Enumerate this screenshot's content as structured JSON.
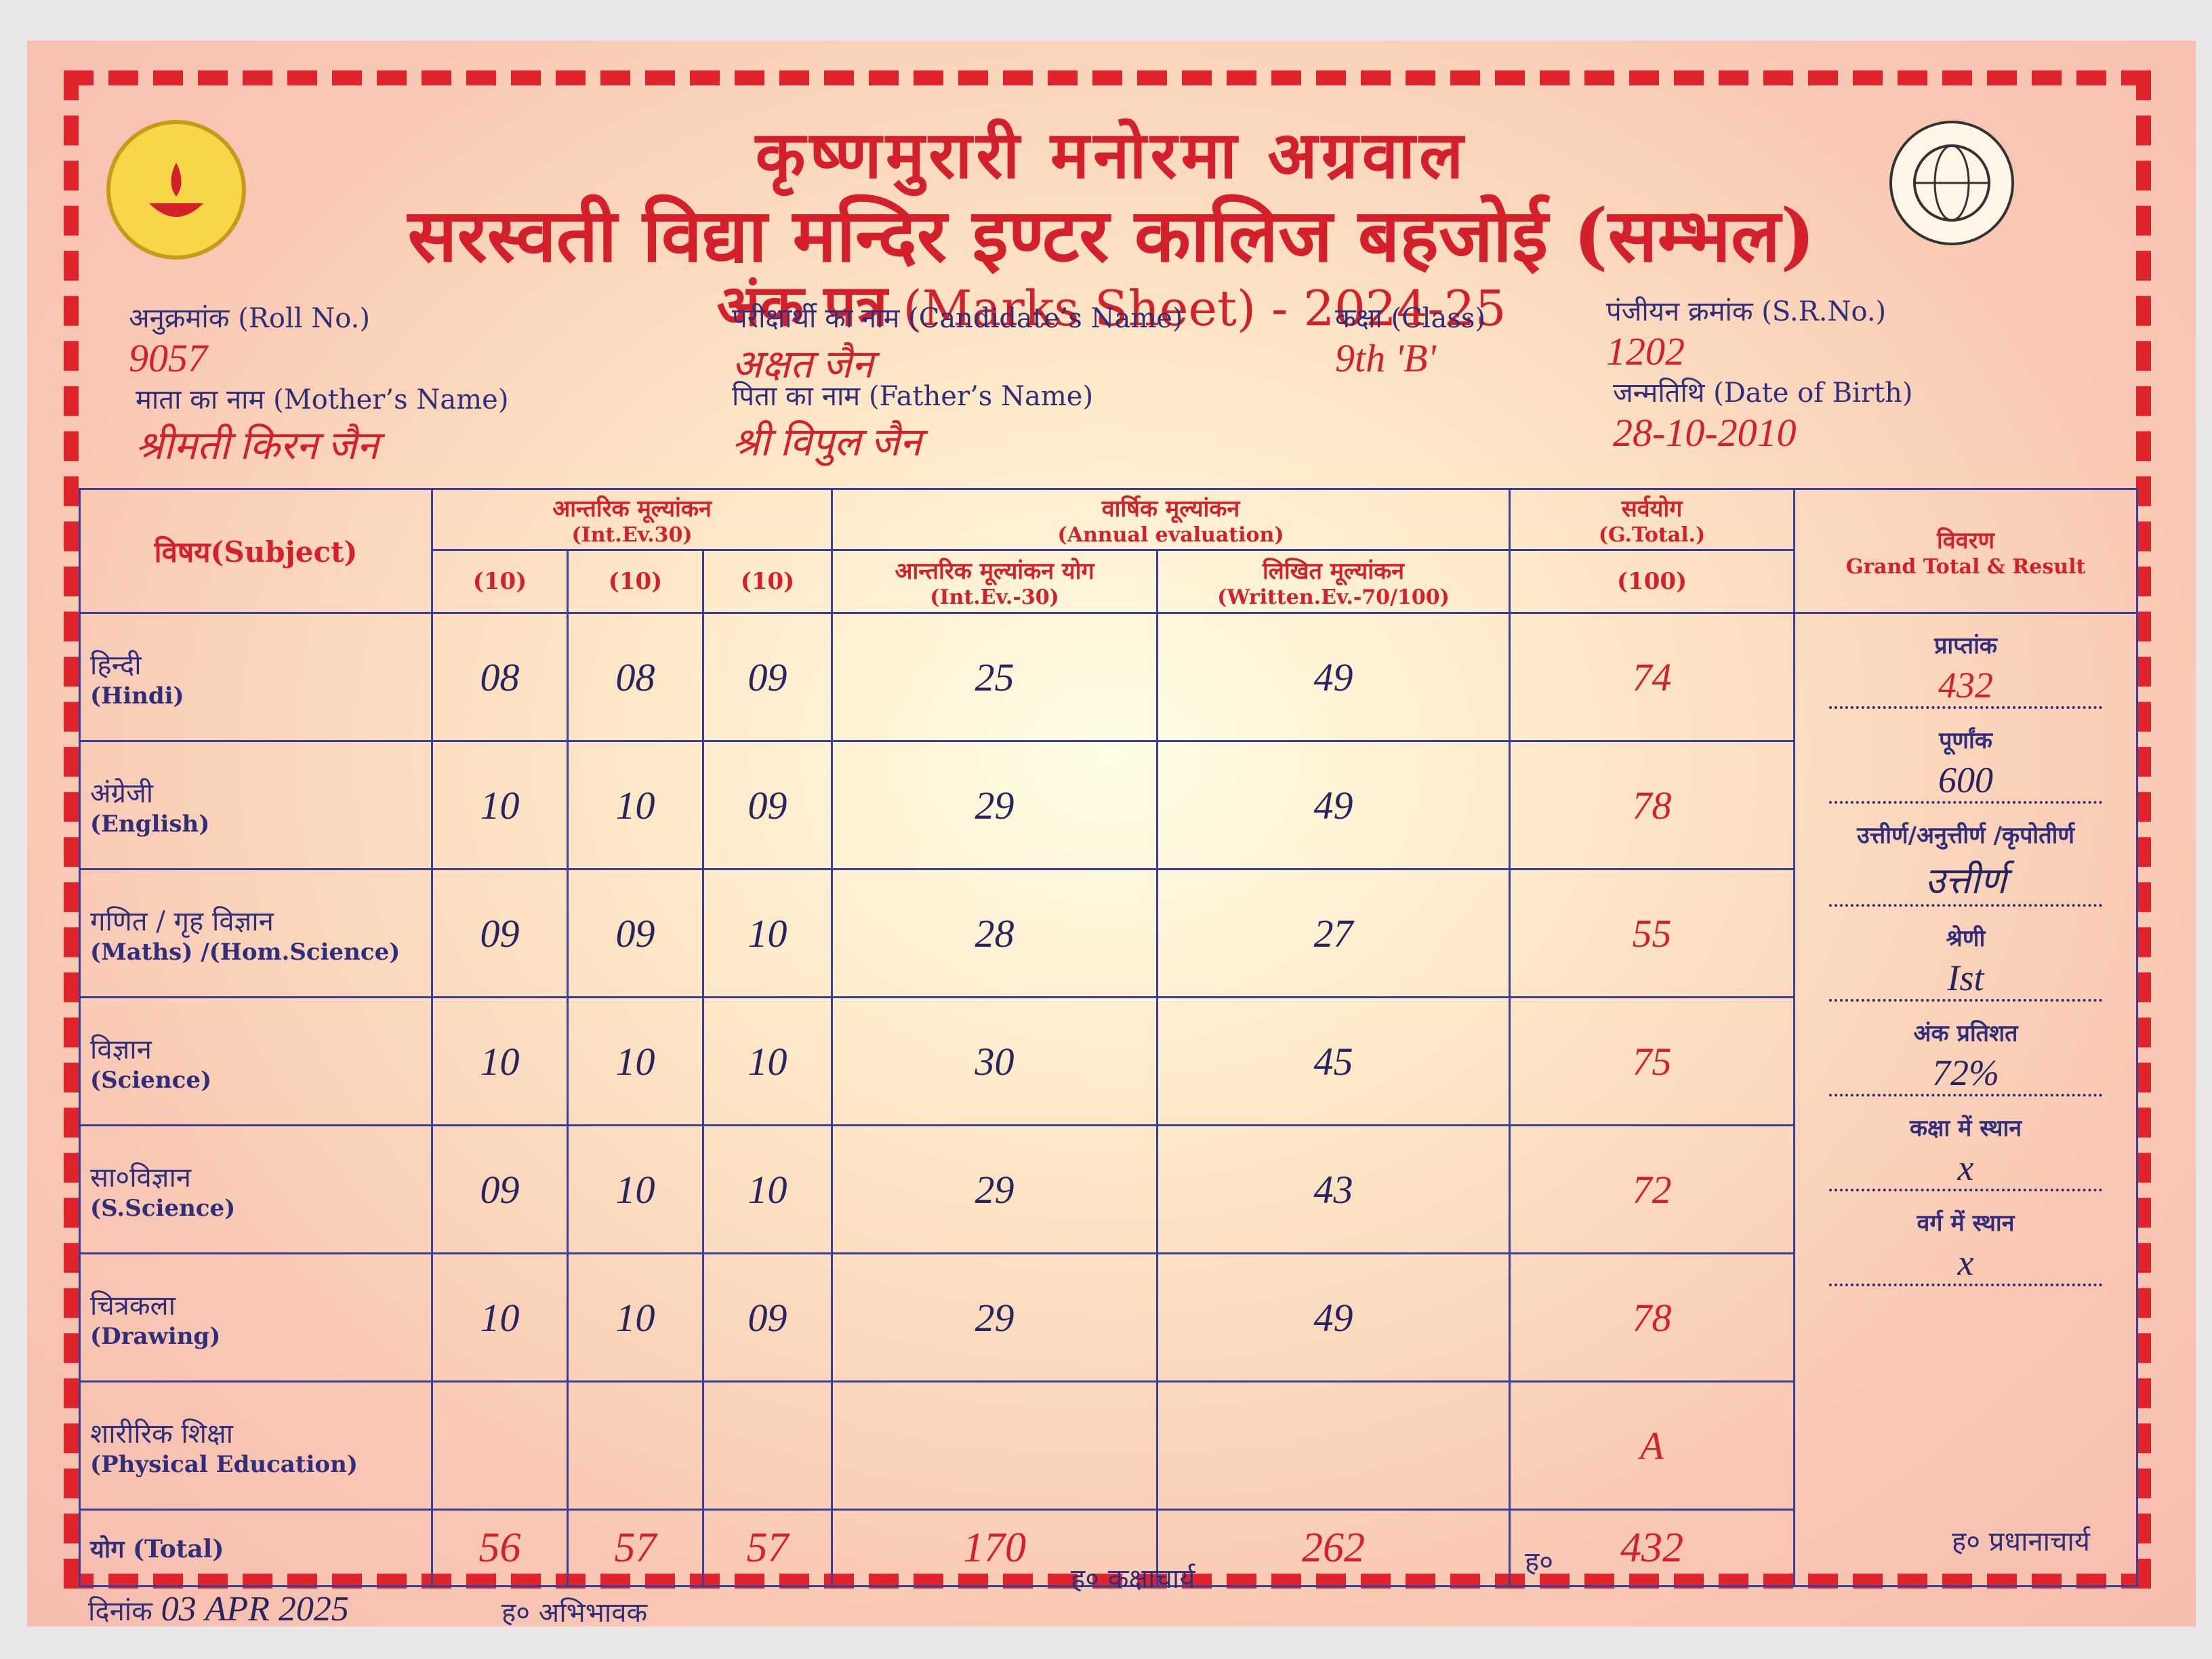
{
  "header": {
    "line1": "कृष्णमुरारी मनोरमा अग्रवाल",
    "line2": "सरस्वती विद्या मन्दिर इण्टर कालिज बहजोई (सम्भल)",
    "title_hi": "अंक पत्र",
    "title_en": "(Marks Sheet) - 2024-25"
  },
  "student": {
    "fields": [
      {
        "label": "अनुक्रमांक (Roll No.)",
        "value": "9057"
      },
      {
        "label": "परीक्षार्थी का नाम (Candidate’s Name)",
        "value": "अक्षत जैन"
      },
      {
        "label": "कक्षा (Class)",
        "value": "9th 'B'"
      },
      {
        "label": "पंजीयन क्रमांक (S.R.No.)",
        "value": "1202"
      },
      {
        "label": "माता का नाम (Mother’s Name)",
        "value": "श्रीमती किरन जैन"
      },
      {
        "label": "पिता का नाम (Father’s Name)",
        "value": "श्री विपुल जैन"
      },
      {
        "label": "जन्मतिथि (Date of Birth)",
        "value": "28-10-2010"
      }
    ]
  },
  "table": {
    "headers": {
      "subject": "विषय(Subject)",
      "internal": "आन्तरिक मूल्यांकन",
      "internal_sub": "(Int.Ev.30)",
      "internal_cols": [
        "(10)",
        "(10)",
        "(10)"
      ],
      "annual": "वार्षिक मूल्यांकन",
      "annual_sub": "(Annual evaluation)",
      "int_sum": "आन्तरिक मूल्यांकन योग",
      "int_sum_sub": "(Int.Ev.-30)",
      "written": "लिखित मूल्यांकन",
      "written_sub": "(Written.Ev.-70/100)",
      "grand": "सर्वयोग",
      "grand_sub": "(G.Total.)",
      "grand_max": "(100)",
      "result": "विवरण",
      "result_sub": "Grand Total & Result"
    },
    "rows": [
      {
        "subject_hi": "हिन्दी",
        "subject_en": "(Hindi)",
        "marks": [
          "08",
          "08",
          "09",
          "25",
          "49",
          "74"
        ]
      },
      {
        "subject_hi": "अंग्रेजी",
        "subject_en": "(English)",
        "marks": [
          "10",
          "10",
          "09",
          "29",
          "49",
          "78"
        ]
      },
      {
        "subject_hi": "गणित / गृह विज्ञान",
        "subject_en": "(Maths) /(Hom.Science)",
        "marks": [
          "09",
          "09",
          "10",
          "28",
          "27",
          "55"
        ]
      },
      {
        "subject_hi": "विज्ञान",
        "subject_en": "(Science)",
        "marks": [
          "10",
          "10",
          "10",
          "30",
          "45",
          "75"
        ]
      },
      {
        "subject_hi": "सा०विज्ञान",
        "subject_en": "(S.Science)",
        "marks": [
          "09",
          "10",
          "10",
          "29",
          "43",
          "72"
        ]
      },
      {
        "subject_hi": "चित्रकला",
        "subject_en": "(Drawing)",
        "marks": [
          "10",
          "10",
          "09",
          "29",
          "49",
          "78"
        ]
      },
      {
        "subject_hi": "शारीरिक शिक्षा",
        "subject_en": "(Physical Education)",
        "marks": [
          null,
          null,
          null,
          null,
          null,
          "A"
        ]
      }
    ],
    "total": {
      "label": "योग (Total)",
      "marks": [
        "56",
        "57",
        "57",
        "170",
        "262",
        "432"
      ]
    },
    "result": [
      {
        "label": "प्राप्तांक",
        "value": "432"
      },
      {
        "label": "पूर्णांक",
        "value": "600"
      },
      {
        "label": "उत्तीर्ण/अनुत्तीर्ण /कृपोतीर्ण",
        "value": "उत्तीर्ण"
      },
      {
        "label": "श्रेणी",
        "value": "Ist"
      },
      {
        "label": "अंक प्रतिशत",
        "value": "72%"
      },
      {
        "label": "कक्षा में स्थान",
        "value": "x"
      },
      {
        "label": "वर्ग में स्थान",
        "value": "x"
      }
    ]
  },
  "footer": {
    "date_label": "दिनांक",
    "date": "03 APR 2025",
    "guardian": "ह० अभिभावक",
    "class_teacher": "ह० कक्षाचार्य",
    "inspector": "ह०",
    "principal": "ह० प्रधानाचार्य"
  }
}
